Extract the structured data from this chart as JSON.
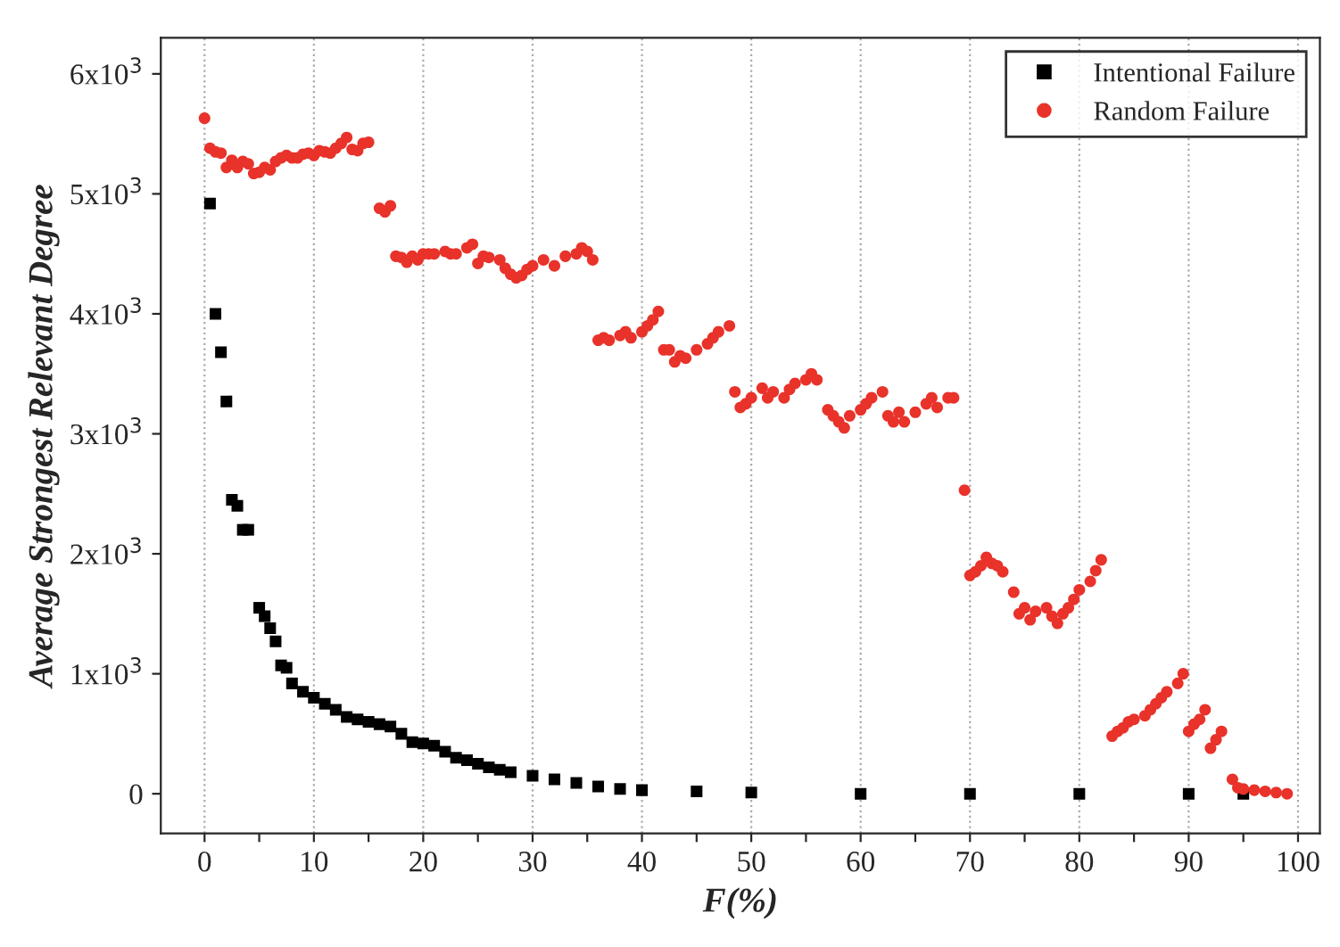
{
  "chart_data": {
    "type": "scatter",
    "xlabel": "F(%)",
    "ylabel": "Average Strongest Relevant Degree",
    "xlim": [
      -4,
      102
    ],
    "ylim": [
      -330,
      6300
    ],
    "xticks": [
      0,
      {
        "value": 5,
        "label": null
      },
      10,
      {
        "value": 15,
        "label": null
      },
      20,
      {
        "value": 25,
        "label": null
      },
      30,
      {
        "value": 35,
        "label": null
      },
      40,
      {
        "value": 45,
        "label": null
      },
      50,
      {
        "value": 55,
        "label": null
      },
      60,
      {
        "value": 65,
        "label": null
      },
      70,
      {
        "value": 75,
        "label": null
      },
      80,
      {
        "value": 85,
        "label": null
      },
      90,
      {
        "value": 95,
        "label": null
      },
      100
    ],
    "yticks": [
      0,
      {
        "value": 1000,
        "label": "1x10$^{3}$"
      },
      {
        "value": 2000,
        "label": "2x10$^{3}$"
      },
      {
        "value": 3000,
        "label": "3x10$^{3}$"
      },
      {
        "value": 4000,
        "label": "4x10$^{3}$"
      },
      {
        "value": 5000,
        "label": "5x10$^{3}$"
      },
      {
        "value": 6000,
        "label": "6x10$^{3}$"
      }
    ],
    "grid": "x",
    "legend": "top right",
    "series": [
      {
        "name": "Intentional Failure",
        "color": "#000000",
        "marker": "square",
        "x": [
          0.5,
          1,
          1.5,
          2,
          2.5,
          3,
          3.5,
          4,
          5,
          5.5,
          6,
          6.5,
          7,
          7.5,
          8,
          9,
          10,
          11,
          12,
          13,
          14,
          15,
          16,
          17,
          18,
          19,
          20,
          21,
          22,
          23,
          24,
          25,
          26,
          27,
          28,
          30,
          32,
          34,
          36,
          38,
          40,
          45,
          50,
          60,
          70,
          80,
          90,
          95
        ],
        "values": [
          4920,
          4000,
          3680,
          3270,
          2450,
          2400,
          2200,
          2200,
          1550,
          1480,
          1380,
          1270,
          1070,
          1050,
          920,
          850,
          800,
          750,
          700,
          640,
          620,
          600,
          580,
          560,
          500,
          430,
          420,
          400,
          350,
          300,
          280,
          250,
          220,
          200,
          180,
          150,
          120,
          90,
          60,
          40,
          30,
          20,
          10,
          0,
          0,
          0,
          0,
          0
        ]
      },
      {
        "name": "Random Failure",
        "color": "#e8322a",
        "marker": "circle",
        "x": [
          0,
          0.5,
          1,
          1.5,
          2,
          2.5,
          3,
          3.5,
          4,
          4.5,
          5,
          5.5,
          6,
          6.5,
          7,
          7.5,
          8,
          8.5,
          9,
          9.5,
          10,
          10.5,
          11,
          11.5,
          12,
          12.5,
          13,
          13.5,
          14,
          14.5,
          15,
          16,
          16.5,
          17,
          17.5,
          18,
          18.5,
          19,
          19.5,
          20,
          20.5,
          21,
          22,
          22.5,
          23,
          24,
          24.5,
          25,
          25.5,
          26,
          27,
          27.5,
          28,
          28.5,
          29,
          29.5,
          30,
          31,
          32,
          33,
          34,
          34.5,
          35,
          35.5,
          36,
          36.5,
          37,
          38,
          38.5,
          39,
          40,
          40.5,
          41,
          41.5,
          42,
          42.5,
          43,
          43.5,
          44,
          45,
          46,
          46.5,
          47,
          48,
          48.5,
          49,
          49.5,
          50,
          51,
          51.5,
          52,
          53,
          53.5,
          54,
          55,
          55.5,
          56,
          57,
          57.5,
          58,
          58.5,
          59,
          60,
          60.5,
          61,
          62,
          62.5,
          63,
          63.5,
          64,
          65,
          66,
          66.5,
          67,
          68,
          68.5,
          69.5,
          70,
          70.5,
          71,
          71.5,
          72,
          72.5,
          73,
          74,
          74.5,
          75,
          75.5,
          76,
          77,
          77.5,
          78,
          78.5,
          79,
          79.5,
          80,
          81,
          81.5,
          82,
          83,
          83.5,
          84,
          84.5,
          85,
          86,
          86.5,
          87,
          87.5,
          88,
          89,
          89.5,
          90,
          90.5,
          91,
          91.5,
          92,
          92.5,
          93,
          94,
          94.5,
          95,
          96,
          97,
          98,
          99
        ],
        "values": [
          5630,
          5380,
          5350,
          5340,
          5220,
          5280,
          5220,
          5270,
          5250,
          5170,
          5180,
          5220,
          5200,
          5270,
          5300,
          5320,
          5300,
          5300,
          5330,
          5340,
          5320,
          5360,
          5350,
          5340,
          5380,
          5420,
          5470,
          5370,
          5360,
          5420,
          5430,
          4880,
          4850,
          4900,
          4480,
          4470,
          4430,
          4480,
          4450,
          4500,
          4500,
          4500,
          4520,
          4500,
          4500,
          4550,
          4580,
          4420,
          4480,
          4470,
          4450,
          4380,
          4330,
          4300,
          4320,
          4370,
          4400,
          4450,
          4400,
          4480,
          4500,
          4550,
          4520,
          4450,
          3780,
          3800,
          3780,
          3820,
          3850,
          3800,
          3850,
          3900,
          3950,
          4020,
          3700,
          3700,
          3600,
          3650,
          3630,
          3700,
          3750,
          3800,
          3850,
          3900,
          3350,
          3220,
          3250,
          3300,
          3380,
          3300,
          3350,
          3300,
          3370,
          3420,
          3450,
          3500,
          3450,
          3200,
          3150,
          3100,
          3050,
          3150,
          3200,
          3250,
          3300,
          3350,
          3150,
          3100,
          3180,
          3100,
          3180,
          3250,
          3300,
          3220,
          3300,
          3300,
          2530,
          1820,
          1850,
          1900,
          1970,
          1920,
          1900,
          1850,
          1680,
          1500,
          1550,
          1450,
          1520,
          1550,
          1480,
          1420,
          1500,
          1550,
          1620,
          1700,
          1770,
          1860,
          1950,
          480,
          520,
          550,
          600,
          620,
          650,
          700,
          750,
          800,
          850,
          920,
          1000,
          520,
          580,
          620,
          700,
          380,
          450,
          520,
          120,
          50,
          40,
          30,
          20,
          10,
          0
        ]
      }
    ]
  }
}
